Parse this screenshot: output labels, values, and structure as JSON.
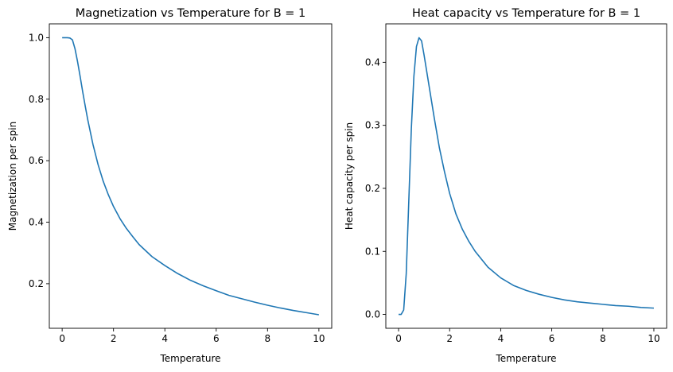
{
  "chart_data": [
    {
      "type": "line",
      "title": "Magnetization vs Temperature for B = 1",
      "xlabel": "Temperature",
      "ylabel": "Magnetization per spin",
      "xlim": [
        -0.5,
        10.5
      ],
      "ylim": [
        0.055,
        1.045
      ],
      "xticks": [
        0,
        2,
        4,
        6,
        8,
        10
      ],
      "xtick_labels": [
        "0",
        "2",
        "4",
        "6",
        "8",
        "10"
      ],
      "yticks": [
        0.2,
        0.4,
        0.6,
        0.8,
        1.0
      ],
      "ytick_labels": [
        "0.2",
        "0.4",
        "0.6",
        "0.8",
        "1.0"
      ],
      "grid": false,
      "color": "#1f77b4",
      "series": [
        {
          "x": [
            0.0,
            0.1,
            0.2,
            0.3,
            0.4,
            0.5,
            0.6,
            0.7,
            0.8,
            0.9,
            1.0,
            1.2,
            1.4,
            1.6,
            1.8,
            2.0,
            2.25,
            2.5,
            2.75,
            3.0,
            3.5,
            4.0,
            4.5,
            5.0,
            5.5,
            6.0,
            6.5,
            7.0,
            7.5,
            8.0,
            8.5,
            9.0,
            9.5,
            10.0
          ],
          "y": [
            1.0,
            1.0,
            1.0,
            0.999,
            0.993,
            0.964,
            0.922,
            0.874,
            0.824,
            0.777,
            0.732,
            0.653,
            0.587,
            0.533,
            0.489,
            0.451,
            0.412,
            0.38,
            0.353,
            0.327,
            0.288,
            0.259,
            0.233,
            0.211,
            0.193,
            0.177,
            0.162,
            0.151,
            0.14,
            0.13,
            0.121,
            0.113,
            0.106,
            0.099
          ]
        }
      ]
    },
    {
      "type": "line",
      "title": "Heat capacity vs Temperature for B = 1",
      "xlabel": "Temperature",
      "ylabel": "Heat capacity per spin",
      "xlim": [
        -0.5,
        10.5
      ],
      "ylim": [
        -0.022,
        0.461
      ],
      "xticks": [
        0,
        2,
        4,
        6,
        8,
        10
      ],
      "xtick_labels": [
        "0",
        "2",
        "4",
        "6",
        "8",
        "10"
      ],
      "yticks": [
        0.0,
        0.1,
        0.2,
        0.3,
        0.4
      ],
      "ytick_labels": [
        "0.0",
        "0.1",
        "0.2",
        "0.3",
        "0.4"
      ],
      "grid": false,
      "color": "#1f77b4",
      "series": [
        {
          "x": [
            0.0,
            0.1,
            0.2,
            0.3,
            0.4,
            0.5,
            0.6,
            0.7,
            0.8,
            0.9,
            1.0,
            1.2,
            1.4,
            1.6,
            1.8,
            2.0,
            2.25,
            2.5,
            2.75,
            3.0,
            3.5,
            4.0,
            4.5,
            5.0,
            5.5,
            6.0,
            6.5,
            7.0,
            7.5,
            8.0,
            8.5,
            9.0,
            9.5,
            10.0
          ],
          "y": [
            0.0,
            0.0,
            0.007,
            0.065,
            0.18,
            0.295,
            0.378,
            0.425,
            0.439,
            0.434,
            0.411,
            0.361,
            0.311,
            0.264,
            0.226,
            0.192,
            0.159,
            0.135,
            0.116,
            0.1,
            0.075,
            0.058,
            0.046,
            0.038,
            0.032,
            0.027,
            0.023,
            0.02,
            0.018,
            0.016,
            0.014,
            0.013,
            0.011,
            0.01
          ]
        }
      ]
    }
  ]
}
